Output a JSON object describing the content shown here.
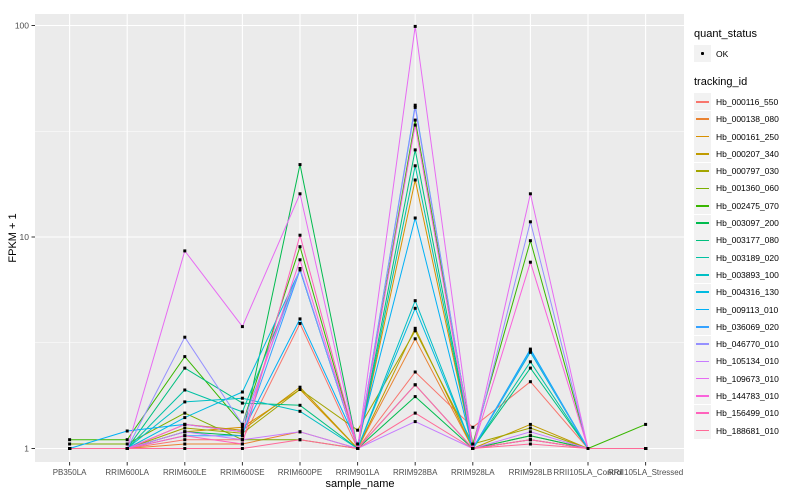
{
  "axes": {
    "x_title": "sample_name",
    "y_title": "FPKM + 1"
  },
  "legend": {
    "quant_title": "quant_status",
    "quant_items": [
      {
        "label": "OK"
      }
    ],
    "tracking_title": "tracking_id"
  },
  "colors": {
    "panel_bg": "#EBEBEB",
    "grid": "#FFFFFF",
    "tick_mark": "#333333",
    "tick_label": "#4D4D4D",
    "point": "#000000",
    "legend_key_bg": "#F2F2F2"
  },
  "chart_data": {
    "type": "line",
    "title": "",
    "xlabel": "sample_name",
    "ylabel": "FPKM + 1",
    "y_scale": "log10",
    "ylim": [
      0.86,
      113
    ],
    "grid": "on",
    "legend_position": "right",
    "y_ticks": [
      {
        "label": "1",
        "value": 1
      },
      {
        "label": "10",
        "value": 10
      },
      {
        "label": "100",
        "value": 100
      }
    ],
    "y_minor_values": [
      3.162,
      31.623
    ],
    "categories": [
      "PB350LA",
      "RRIM600LA",
      "RRIM600LE",
      "RRIM600SE",
      "RRIM600PE",
      "RRIM901LA",
      "RRIM928BA",
      "RRIM928LA",
      "RRIM928LB",
      "RRII105LA_Control",
      "RRII105LA_Stressed"
    ],
    "series": [
      {
        "name": "Hb_000116_550",
        "color": "#F8766D",
        "values": [
          1,
          1,
          1.1,
          1.1,
          3.9,
          1,
          2.3,
          1.26,
          2.07,
          1,
          1
        ]
      },
      {
        "name": "Hb_000138_080",
        "color": "#EA8331",
        "values": [
          1,
          1,
          1.05,
          1.05,
          1.2,
          1,
          3.3,
          1,
          1.1,
          1,
          1
        ]
      },
      {
        "name": "Hb_000161_250",
        "color": "#D89000",
        "values": [
          1,
          1,
          1.2,
          1.26,
          1.9,
          1,
          18.6,
          1,
          1.15,
          1,
          1
        ]
      },
      {
        "name": "Hb_000207_340",
        "color": "#C09B00",
        "values": [
          1,
          1,
          1.3,
          1.22,
          1.95,
          1,
          3.7,
          1,
          1.3,
          1,
          1
        ]
      },
      {
        "name": "Hb_000797_030",
        "color": "#A3A500",
        "values": [
          1,
          1,
          1.25,
          1.18,
          1.9,
          1.22,
          3.6,
          1.05,
          1.25,
          1,
          1
        ]
      },
      {
        "name": "Hb_001360_060",
        "color": "#7CAE00",
        "values": [
          1.05,
          1.05,
          1.47,
          1.1,
          1.1,
          1,
          2.0,
          1,
          1.1,
          1,
          1
        ]
      },
      {
        "name": "Hb_002475_070",
        "color": "#39B600",
        "values": [
          1.1,
          1.1,
          2.72,
          1.3,
          9.0,
          1,
          35.7,
          1.05,
          9.6,
          1,
          1.3
        ]
      },
      {
        "name": "Hb_003097_200",
        "color": "#00BB4E",
        "values": [
          1,
          1,
          1.2,
          1.15,
          22,
          1,
          1.76,
          1,
          1.15,
          1,
          1
        ]
      },
      {
        "name": "Hb_003177_080",
        "color": "#00BF7D",
        "values": [
          1,
          1,
          2.4,
          1.64,
          1.6,
          1,
          25.8,
          1,
          2.4,
          1,
          1
        ]
      },
      {
        "name": "Hb_003189_020",
        "color": "#00C1A3",
        "values": [
          1,
          1,
          1.89,
          1.49,
          7.0,
          1,
          21.7,
          1,
          2.57,
          1,
          1
        ]
      },
      {
        "name": "Hb_003893_100",
        "color": "#00BFC4",
        "values": [
          1,
          1,
          1.66,
          1.73,
          1.5,
          1,
          5.0,
          1,
          2.85,
          1,
          1
        ]
      },
      {
        "name": "Hb_004316_130",
        "color": "#00BAE0",
        "values": [
          1,
          1,
          1.4,
          1.85,
          7.0,
          1,
          4.6,
          1,
          2.9,
          1,
          1
        ]
      },
      {
        "name": "Hb_009113_010",
        "color": "#00B0F6",
        "values": [
          1,
          1.21,
          1.3,
          1.2,
          4.1,
          1.05,
          12.3,
          1,
          2.95,
          1,
          1
        ]
      },
      {
        "name": "Hb_036069_020",
        "color": "#35A2FF",
        "values": [
          1,
          1,
          1.15,
          1.15,
          7.0,
          1,
          42,
          1,
          2.9,
          1,
          1
        ]
      },
      {
        "name": "Hb_046770_010",
        "color": "#9590FF",
        "values": [
          1,
          1,
          3.36,
          1.3,
          7.1,
          1,
          41,
          1,
          11.8,
          1,
          1
        ]
      },
      {
        "name": "Hb_105134_010",
        "color": "#C77CFF",
        "values": [
          1,
          1,
          1.2,
          1.1,
          1.2,
          1,
          1.34,
          1,
          1.2,
          1,
          1
        ]
      },
      {
        "name": "Hb_109673_010",
        "color": "#E76BF3",
        "values": [
          1,
          1,
          8.6,
          3.77,
          16,
          1,
          99,
          1,
          16,
          1,
          1
        ]
      },
      {
        "name": "Hb_144783_010",
        "color": "#FA62DB",
        "values": [
          1,
          1,
          1.3,
          1.2,
          7.8,
          1,
          33.8,
          1,
          7.6,
          1,
          1
        ]
      },
      {
        "name": "Hb_156499_010",
        "color": "#FF62BC",
        "values": [
          1,
          1,
          1.15,
          1.05,
          10.2,
          1,
          2.0,
          1,
          1.1,
          1,
          1
        ]
      },
      {
        "name": "Hb_188681_010",
        "color": "#FF6A98",
        "values": [
          1,
          1,
          1.0,
          1.0,
          1.1,
          1,
          1.47,
          1,
          1.05,
          1,
          1
        ]
      }
    ]
  }
}
